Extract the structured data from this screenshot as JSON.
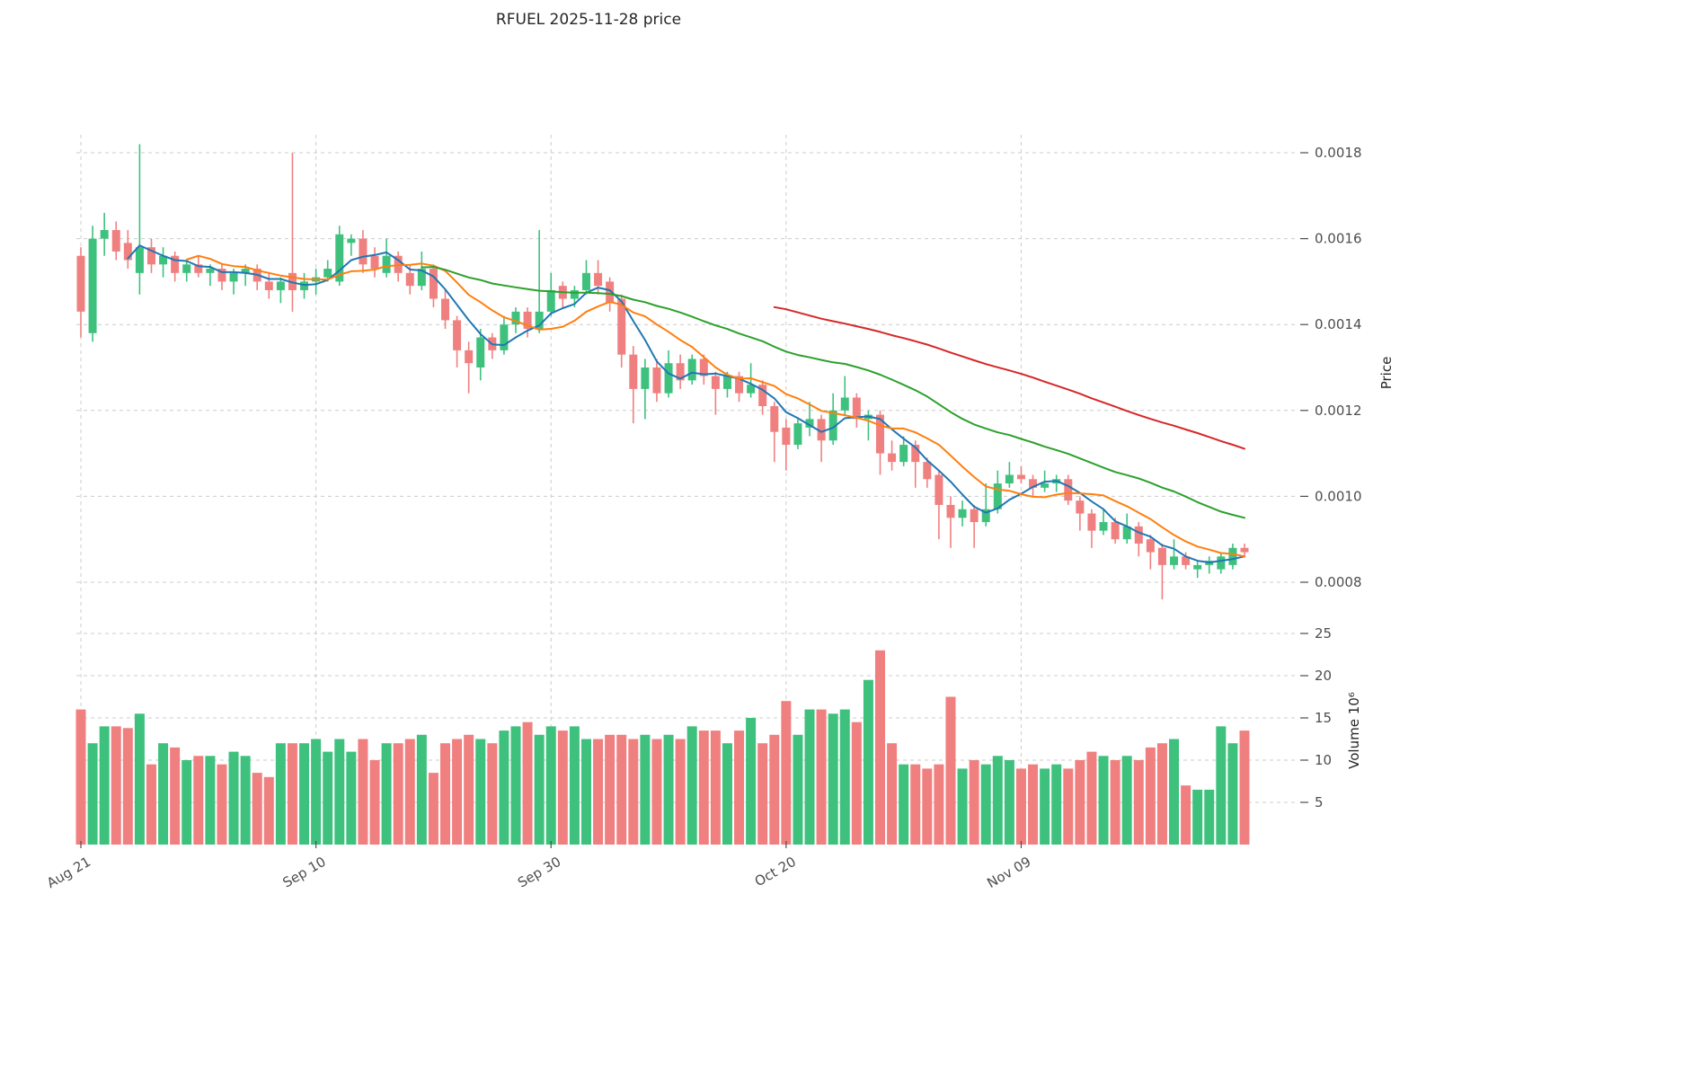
{
  "title": "RFUEL  2025-11-28  price",
  "axes": {
    "price_label": "Price",
    "volume_label": "Volume  10⁶",
    "price_ticks": [
      "0.0008",
      "0.0010",
      "0.0012",
      "0.0014",
      "0.0016",
      "0.0018"
    ],
    "volume_ticks": [
      5,
      10,
      15,
      20,
      25
    ],
    "x_ticks": [
      {
        "i": 0,
        "label": "Aug 21"
      },
      {
        "i": 20,
        "label": "Sep 10"
      },
      {
        "i": 40,
        "label": "Sep 30"
      },
      {
        "i": 60,
        "label": "Oct 20"
      },
      {
        "i": 80,
        "label": "Nov 09"
      }
    ]
  },
  "colors": {
    "up": "#3fc17e",
    "down": "#f08080",
    "grid": "#cccccc",
    "tick_text": "#4d4d4d",
    "ma_fast": "#1f77b4",
    "ma_mid": "#ff7f0e",
    "ma_slow": "#2ca02c",
    "ma_slowest": "#d62728"
  },
  "chart_data": {
    "type": "candlestick",
    "title": "RFUEL 2025-11-28 price",
    "ylabel": "Price",
    "volume_ylabel": "Volume 10^6",
    "price_axis_range": [
      0.0008,
      0.0018
    ],
    "volume_axis_range_millions": [
      0,
      25
    ],
    "grid": true,
    "x_tick_labels": [
      "Aug 21",
      "Sep 10",
      "Sep 30",
      "Oct 20",
      "Nov 09"
    ],
    "x_tick_indices": [
      0,
      20,
      40,
      60,
      80
    ],
    "moving_averages": [
      {
        "period": 5,
        "color": "#1f77b4"
      },
      {
        "period": 10,
        "color": "#ff7f0e"
      },
      {
        "period": 30,
        "color": "#2ca02c"
      },
      {
        "period": 60,
        "color": "#d62728"
      }
    ],
    "open": [
      0.00156,
      0.00138,
      0.0016,
      0.00162,
      0.00159,
      0.00152,
      0.00158,
      0.00154,
      0.00156,
      0.00152,
      0.00154,
      0.00152,
      0.00153,
      0.0015,
      0.00152,
      0.00153,
      0.0015,
      0.00148,
      0.00152,
      0.00148,
      0.0015,
      0.00151,
      0.0015,
      0.00159,
      0.0016,
      0.00156,
      0.00152,
      0.00156,
      0.00152,
      0.00149,
      0.00153,
      0.00146,
      0.00141,
      0.00134,
      0.0013,
      0.00137,
      0.00134,
      0.0014,
      0.00143,
      0.00139,
      0.00143,
      0.00149,
      0.00146,
      0.00148,
      0.00152,
      0.0015,
      0.00146,
      0.00133,
      0.00125,
      0.0013,
      0.00124,
      0.00131,
      0.00127,
      0.00132,
      0.00128,
      0.00125,
      0.00128,
      0.00124,
      0.00126,
      0.00121,
      0.00116,
      0.00112,
      0.00116,
      0.00118,
      0.00113,
      0.0012,
      0.00123,
      0.00118,
      0.00119,
      0.0011,
      0.00108,
      0.00112,
      0.00108,
      0.00105,
      0.00098,
      0.00095,
      0.00097,
      0.00094,
      0.00097,
      0.00103,
      0.00105,
      0.00104,
      0.00102,
      0.00103,
      0.00104,
      0.00099,
      0.00096,
      0.00092,
      0.00094,
      0.0009,
      0.00093,
      0.0009,
      0.00088,
      0.00084,
      0.00086,
      0.00083,
      0.00084,
      0.00083,
      0.00084,
      0.00088
    ],
    "high": [
      0.00158,
      0.00163,
      0.00166,
      0.00164,
      0.00162,
      0.00182,
      0.0016,
      0.00158,
      0.00157,
      0.00155,
      0.00156,
      0.00154,
      0.00154,
      0.00153,
      0.00154,
      0.00154,
      0.00152,
      0.00151,
      0.0018,
      0.00152,
      0.00153,
      0.00155,
      0.00163,
      0.00161,
      0.00162,
      0.00158,
      0.0016,
      0.00157,
      0.00154,
      0.00157,
      0.00154,
      0.00148,
      0.00142,
      0.00136,
      0.00139,
      0.00138,
      0.00142,
      0.00144,
      0.00144,
      0.00162,
      0.00152,
      0.0015,
      0.00149,
      0.00155,
      0.00155,
      0.00151,
      0.00147,
      0.00135,
      0.00132,
      0.00132,
      0.00134,
      0.00133,
      0.00133,
      0.00133,
      0.00129,
      0.00129,
      0.00129,
      0.00131,
      0.00127,
      0.00122,
      0.00118,
      0.00118,
      0.00122,
      0.00119,
      0.00124,
      0.00128,
      0.00124,
      0.0012,
      0.0012,
      0.00113,
      0.00114,
      0.00113,
      0.00109,
      0.00106,
      0.001,
      0.00099,
      0.00098,
      0.00103,
      0.00106,
      0.00108,
      0.00107,
      0.00105,
      0.00106,
      0.00105,
      0.00105,
      0.001,
      0.00097,
      0.00097,
      0.00095,
      0.00096,
      0.00094,
      0.00091,
      0.00089,
      0.0009,
      0.00087,
      0.00085,
      0.00086,
      0.00087,
      0.00089,
      0.00089
    ],
    "low": [
      0.00137,
      0.00136,
      0.00156,
      0.00155,
      0.00153,
      0.00147,
      0.00152,
      0.00151,
      0.0015,
      0.0015,
      0.00151,
      0.00149,
      0.00148,
      0.00147,
      0.00149,
      0.00148,
      0.00146,
      0.00145,
      0.00143,
      0.00146,
      0.00147,
      0.0015,
      0.00149,
      0.00156,
      0.00152,
      0.00151,
      0.00151,
      0.0015,
      0.00147,
      0.00148,
      0.00144,
      0.00139,
      0.0013,
      0.00124,
      0.00127,
      0.00132,
      0.00133,
      0.00138,
      0.00137,
      0.00138,
      0.00142,
      0.00144,
      0.00144,
      0.00147,
      0.00147,
      0.00143,
      0.0013,
      0.00117,
      0.00118,
      0.00122,
      0.00123,
      0.00125,
      0.00126,
      0.00126,
      0.00119,
      0.00123,
      0.00122,
      0.00123,
      0.00119,
      0.00108,
      0.00106,
      0.00111,
      0.00114,
      0.00108,
      0.00112,
      0.00119,
      0.00116,
      0.00113,
      0.00105,
      0.00106,
      0.00107,
      0.00102,
      0.00102,
      0.0009,
      0.00088,
      0.00093,
      0.00088,
      0.00093,
      0.00096,
      0.00102,
      0.00103,
      0.001,
      0.00101,
      0.00101,
      0.00098,
      0.00092,
      0.00088,
      0.00091,
      0.00089,
      0.00089,
      0.00086,
      0.00083,
      0.00076,
      0.00083,
      0.00083,
      0.00081,
      0.00082,
      0.00082,
      0.00083,
      0.00086
    ],
    "close": [
      0.00143,
      0.0016,
      0.00162,
      0.00157,
      0.00155,
      0.00158,
      0.00154,
      0.00156,
      0.00152,
      0.00154,
      0.00152,
      0.00153,
      0.0015,
      0.00152,
      0.00153,
      0.0015,
      0.00148,
      0.0015,
      0.00148,
      0.0015,
      0.00151,
      0.00153,
      0.00161,
      0.0016,
      0.00154,
      0.00153,
      0.00156,
      0.00152,
      0.00149,
      0.00153,
      0.00146,
      0.00141,
      0.00134,
      0.00131,
      0.00137,
      0.00134,
      0.0014,
      0.00143,
      0.00139,
      0.00143,
      0.00148,
      0.00146,
      0.00148,
      0.00152,
      0.00149,
      0.00145,
      0.00133,
      0.00125,
      0.0013,
      0.00124,
      0.00131,
      0.00127,
      0.00132,
      0.00128,
      0.00125,
      0.00128,
      0.00124,
      0.00126,
      0.00121,
      0.00115,
      0.00112,
      0.00117,
      0.00118,
      0.00113,
      0.0012,
      0.00123,
      0.00118,
      0.00119,
      0.0011,
      0.00108,
      0.00112,
      0.00108,
      0.00104,
      0.00098,
      0.00095,
      0.00097,
      0.00094,
      0.00097,
      0.00103,
      0.00105,
      0.00104,
      0.00102,
      0.00103,
      0.00104,
      0.00099,
      0.00096,
      0.00092,
      0.00094,
      0.0009,
      0.00093,
      0.00089,
      0.00087,
      0.00084,
      0.00086,
      0.00084,
      0.00084,
      0.00085,
      0.00086,
      0.00088,
      0.00087
    ],
    "volume_millions": [
      16,
      12,
      14,
      14,
      13.8,
      15.5,
      9.5,
      12,
      11.5,
      10,
      10.5,
      10.5,
      9.5,
      11,
      10.5,
      8.5,
      8,
      12,
      12,
      12,
      12.5,
      11,
      12.5,
      11,
      12.5,
      10,
      12,
      12,
      12.5,
      13,
      8.5,
      12,
      12.5,
      13,
      12.5,
      12,
      13.5,
      14,
      14.5,
      13,
      14,
      13.5,
      14,
      12.5,
      12.5,
      13,
      13,
      12.5,
      13,
      12.5,
      13,
      12.5,
      14,
      13.5,
      13.5,
      12,
      13.5,
      15,
      12,
      13,
      17,
      13,
      16,
      16,
      15.5,
      16,
      14.5,
      19.5,
      23,
      12,
      9.5,
      9.5,
      9,
      9.5,
      17.5,
      9,
      10,
      9.5,
      10.5,
      10,
      9,
      9.5,
      9,
      9.5,
      9,
      10,
      11,
      10.5,
      10,
      10.5,
      10,
      11.5,
      12,
      12.5,
      7,
      6.5,
      6.5,
      14,
      12,
      13.5
    ]
  }
}
